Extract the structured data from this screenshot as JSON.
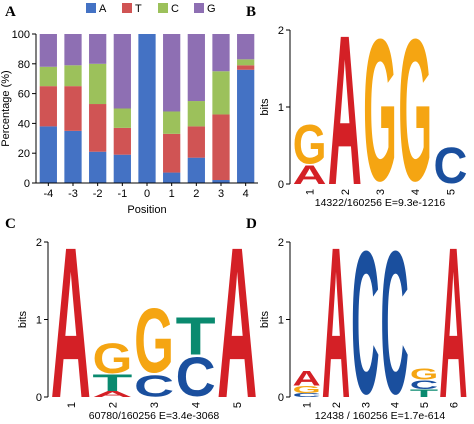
{
  "colors": {
    "A": "#d42026",
    "C": "#1a4f9e",
    "G": "#f5a512",
    "T": "#0a8a6f"
  },
  "chart_data": [
    {
      "panel": "A",
      "type": "bar",
      "stacked": true,
      "xlabel": "Position",
      "ylabel": "Percentage (%)",
      "ylim": [
        0,
        100
      ],
      "yticks": [
        "0",
        "20",
        "40",
        "60",
        "80",
        "100"
      ],
      "categories": [
        "-4",
        "-3",
        "-2",
        "-1",
        "0",
        "1",
        "2",
        "3",
        "4"
      ],
      "series": [
        {
          "name": "A",
          "color": "#4472c4",
          "values": [
            38,
            35,
            21,
            19,
            100,
            7,
            17,
            2,
            76
          ]
        },
        {
          "name": "T",
          "color": "#d05454",
          "values": [
            27,
            30,
            32,
            18,
            0,
            26,
            21,
            44,
            3
          ]
        },
        {
          "name": "C",
          "color": "#9cc15b",
          "values": [
            13,
            14,
            27,
            13,
            0,
            15,
            17,
            29,
            4
          ]
        },
        {
          "name": "G",
          "color": "#8e6fb3",
          "values": [
            22,
            21,
            20,
            50,
            0,
            52,
            45,
            25,
            17
          ]
        }
      ],
      "legend": "top"
    },
    {
      "panel": "B",
      "type": "sequence-logo",
      "ylabel": "bits",
      "ylim": [
        0,
        2
      ],
      "yticks": [
        "0",
        "1",
        "2"
      ],
      "positions": [
        "1",
        "2",
        "3",
        "4",
        "5"
      ],
      "stacks": [
        [
          {
            "letter": "A",
            "bits": 0.25
          },
          {
            "letter": "G",
            "bits": 0.55
          }
        ],
        [
          {
            "letter": "A",
            "bits": 2.0
          }
        ],
        [
          {
            "letter": "G",
            "bits": 2.0
          }
        ],
        [
          {
            "letter": "G",
            "bits": 2.0
          }
        ],
        [
          {
            "letter": "C",
            "bits": 0.5
          }
        ]
      ],
      "caption": "14322/160256    E=9.3e-1216"
    },
    {
      "panel": "C",
      "type": "sequence-logo",
      "ylabel": "bits",
      "ylim": [
        0,
        2
      ],
      "yticks": [
        "0",
        "1",
        "2"
      ],
      "positions": [
        "1",
        "2",
        "3",
        "4",
        "5"
      ],
      "stacks": [
        [
          {
            "letter": "A",
            "bits": 2.0
          }
        ],
        [
          {
            "letter": "A",
            "bits": 0.08
          },
          {
            "letter": "T",
            "bits": 0.22
          },
          {
            "letter": "G",
            "bits": 0.42
          }
        ],
        [
          {
            "letter": "C",
            "bits": 0.3
          },
          {
            "letter": "G",
            "bits": 0.9
          }
        ],
        [
          {
            "letter": "C",
            "bits": 0.55
          },
          {
            "letter": "T",
            "bits": 0.5
          }
        ],
        [
          {
            "letter": "A",
            "bits": 2.0
          }
        ]
      ],
      "caption": "60780/160256    E=3.4e-3068"
    },
    {
      "panel": "D",
      "type": "sequence-logo",
      "ylabel": "bits",
      "ylim": [
        0,
        2
      ],
      "yticks": [
        "0",
        "1",
        "2"
      ],
      "positions": [
        "1",
        "2",
        "3",
        "4",
        "5",
        "6"
      ],
      "stacks": [
        [
          {
            "letter": "C",
            "bits": 0.05
          },
          {
            "letter": "G",
            "bits": 0.1
          },
          {
            "letter": "A",
            "bits": 0.2
          }
        ],
        [
          {
            "letter": "A",
            "bits": 2.0
          }
        ],
        [
          {
            "letter": "C",
            "bits": 2.0
          }
        ],
        [
          {
            "letter": "C",
            "bits": 2.0
          }
        ],
        [
          {
            "letter": "T",
            "bits": 0.1
          },
          {
            "letter": "C",
            "bits": 0.12
          },
          {
            "letter": "G",
            "bits": 0.15
          }
        ],
        [
          {
            "letter": "A",
            "bits": 2.0
          }
        ]
      ],
      "caption": "12438 / 160256    E=1.7e-614"
    }
  ]
}
